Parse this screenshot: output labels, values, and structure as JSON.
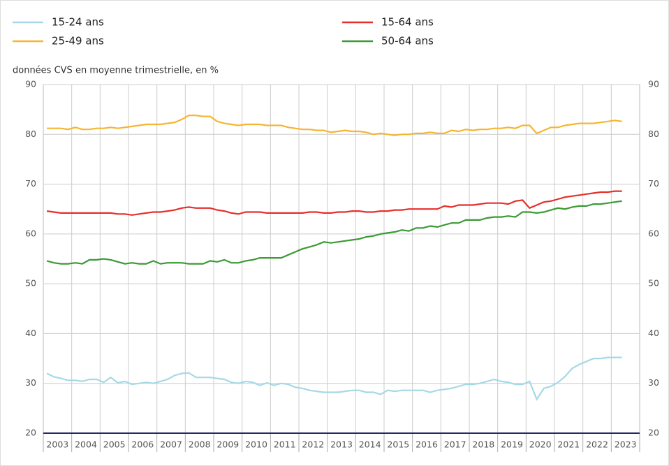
{
  "chart_data": {
    "type": "line",
    "subtitle": "données CVS en moyenne trimestrielle, en %",
    "categories": [
      "2003",
      null,
      null,
      null,
      "2004",
      null,
      null,
      null,
      "2005",
      null,
      null,
      null,
      "2006",
      null,
      null,
      null,
      "2007",
      null,
      null,
      null,
      "2008",
      null,
      null,
      null,
      "2009",
      null,
      null,
      null,
      "2010",
      null,
      null,
      null,
      "2011",
      null,
      null,
      null,
      "2012",
      null,
      null,
      null,
      "2013",
      null,
      null,
      null,
      "2014",
      null,
      null,
      null,
      "2015",
      null,
      null,
      null,
      "2016",
      null,
      null,
      null,
      "2017",
      null,
      null,
      null,
      "2018",
      null,
      null,
      null,
      "2019",
      null,
      null,
      null,
      "2020",
      null,
      null,
      null,
      "2021",
      null,
      null,
      null,
      "2022",
      null,
      null,
      null,
      "2023",
      null
    ],
    "series": [
      {
        "name": "15-24 ans",
        "color": "#a6d8e6",
        "values": [
          32,
          31.3,
          31,
          30.6,
          30.6,
          30.4,
          30.8,
          30.8,
          30.2,
          31.2,
          30.1,
          30.4,
          29.8,
          30,
          30.2,
          30,
          30.4,
          30.8,
          31.6,
          32,
          32.1,
          31.2,
          31.2,
          31.2,
          31,
          30.8,
          30.2,
          30,
          30.4,
          30.2,
          29.6,
          30.1,
          29.6,
          30,
          29.8,
          29.2,
          29,
          28.6,
          28.4,
          28.2,
          28.2,
          28.2,
          28.4,
          28.6,
          28.6,
          28.2,
          28.2,
          27.8,
          28.6,
          28.4,
          28.6,
          28.6,
          28.6,
          28.6,
          28.2,
          28.6,
          28.8,
          29,
          29.4,
          29.8,
          29.8,
          30,
          30.4,
          30.8,
          30.4,
          30.2,
          29.8,
          29.8,
          30.4,
          26.8,
          29,
          29.4,
          30.2,
          31.4,
          33,
          33.8,
          34.4,
          35,
          35,
          35.2,
          35.2,
          35.2
        ]
      },
      {
        "name": "25-49 ans",
        "color": "#f6b530",
        "values": [
          81.2,
          81.2,
          81.2,
          81,
          81.4,
          81,
          81,
          81.2,
          81.2,
          81.4,
          81.2,
          81.4,
          81.6,
          81.8,
          82,
          82,
          82,
          82.2,
          82.4,
          83,
          83.8,
          83.8,
          83.6,
          83.6,
          82.6,
          82.2,
          82,
          81.8,
          82,
          82,
          82,
          81.8,
          81.8,
          81.8,
          81.4,
          81.2,
          81,
          81,
          80.8,
          80.8,
          80.4,
          80.6,
          80.8,
          80.6,
          80.6,
          80.4,
          80,
          80.2,
          80,
          79.8,
          80,
          80,
          80.2,
          80.2,
          80.4,
          80.2,
          80.2,
          80.8,
          80.6,
          81,
          80.8,
          81,
          81,
          81.2,
          81.2,
          81.4,
          81.2,
          81.8,
          81.8,
          80.2,
          80.8,
          81.4,
          81.4,
          81.8,
          82,
          82.2,
          82.2,
          82.2,
          82.4,
          82.6,
          82.8,
          82.6
        ]
      },
      {
        "name": "15-64 ans",
        "color": "#e52f2b",
        "values": [
          64.6,
          64.4,
          64.2,
          64.2,
          64.2,
          64.2,
          64.2,
          64.2,
          64.2,
          64.2,
          64,
          64,
          63.8,
          64,
          64.2,
          64.4,
          64.4,
          64.6,
          64.8,
          65.2,
          65.4,
          65.2,
          65.2,
          65.2,
          64.8,
          64.6,
          64.2,
          64,
          64.4,
          64.4,
          64.4,
          64.2,
          64.2,
          64.2,
          64.2,
          64.2,
          64.2,
          64.4,
          64.4,
          64.2,
          64.2,
          64.4,
          64.4,
          64.6,
          64.6,
          64.4,
          64.4,
          64.6,
          64.6,
          64.8,
          64.8,
          65,
          65,
          65,
          65,
          65,
          65.6,
          65.4,
          65.8,
          65.8,
          65.8,
          66,
          66.2,
          66.2,
          66.2,
          66,
          66.6,
          66.8,
          65.2,
          65.8,
          66.4,
          66.6,
          67,
          67.4,
          67.6,
          67.8,
          68,
          68.2,
          68.4,
          68.4,
          68.6,
          68.6
        ]
      },
      {
        "name": "50-64 ans",
        "color": "#3a9a35",
        "values": [
          54.6,
          54.2,
          54,
          54,
          54.2,
          54,
          54.8,
          54.8,
          55,
          54.8,
          54.4,
          54,
          54.2,
          54,
          54,
          54.6,
          54,
          54.2,
          54.2,
          54.2,
          54,
          54,
          54,
          54.6,
          54.4,
          54.8,
          54.2,
          54.2,
          54.6,
          54.8,
          55.2,
          55.2,
          55.2,
          55.2,
          55.8,
          56.4,
          57,
          57.4,
          57.8,
          58.4,
          58.2,
          58.4,
          58.6,
          58.8,
          59,
          59.4,
          59.6,
          60,
          60.2,
          60.4,
          60.8,
          60.6,
          61.2,
          61.2,
          61.6,
          61.4,
          61.8,
          62.2,
          62.2,
          62.8,
          62.8,
          62.8,
          63.2,
          63.4,
          63.4,
          63.6,
          63.4,
          64.4,
          64.4,
          64.2,
          64.4,
          64.8,
          65.2,
          65,
          65.4,
          65.6,
          65.6,
          66,
          66,
          66.2,
          66.4,
          66.6
        ]
      }
    ],
    "ylim": [
      20,
      90
    ],
    "yticks": [
      20,
      30,
      40,
      50,
      60,
      70,
      80,
      90
    ],
    "grid": true
  }
}
